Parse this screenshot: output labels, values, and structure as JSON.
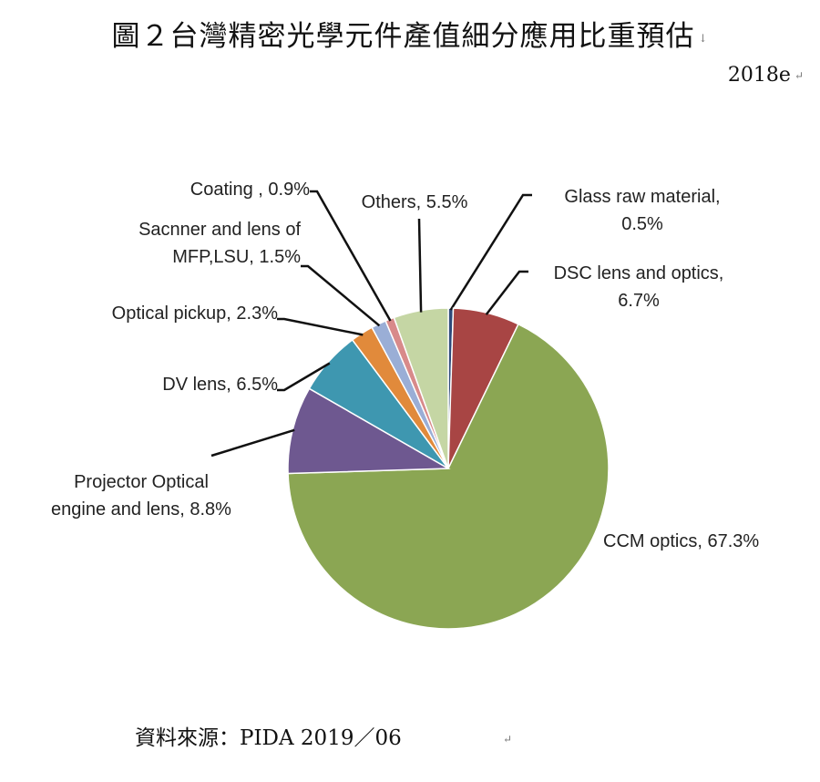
{
  "title": "圖２台灣精密光學元件產值細分應用比重預估",
  "subtitle": "2018e",
  "source": "資料來源：PIDA 2019／06",
  "chart_data": {
    "type": "pie",
    "title": "圖２台灣精密光學元件產值細分應用比重預估",
    "subtitle": "2018e",
    "slices": [
      {
        "label": "Glass raw material",
        "value": 0.5,
        "label_lines": [
          "Glass raw material,",
          "0.5%"
        ],
        "color": "#2e4a7a"
      },
      {
        "label": "DSC lens and optics",
        "value": 6.7,
        "label_lines": [
          "DSC lens and optics,",
          "6.7%"
        ],
        "color": "#a84544"
      },
      {
        "label": "CCM optics",
        "value": 67.3,
        "label_lines": [
          "CCM optics, 67.3%"
        ],
        "color": "#8ba653"
      },
      {
        "label": "Projector Optical engine and lens",
        "value": 8.8,
        "label_lines": [
          "Projector Optical",
          "engine and lens, 8.8%"
        ],
        "color": "#6e5890"
      },
      {
        "label": "DV lens",
        "value": 6.5,
        "label_lines": [
          "DV lens, 6.5%"
        ],
        "color": "#3e97b0"
      },
      {
        "label": "Optical pickup",
        "value": 2.3,
        "label_lines": [
          "Optical pickup, 2.3%"
        ],
        "color": "#e18a3b"
      },
      {
        "label": "Sacnner and lens of MFP,LSU",
        "value": 1.5,
        "label_lines": [
          "Sacnner and lens of",
          "MFP,LSU, 1.5%"
        ],
        "color": "#9aaed6"
      },
      {
        "label": "Coating",
        "value": 0.9,
        "label_lines": [
          "Coating , 0.9%"
        ],
        "color": "#d88a8a"
      },
      {
        "label": "Others",
        "value": 5.5,
        "label_lines": [
          "Others, 5.5%"
        ],
        "color": "#c5d6a4"
      }
    ]
  }
}
